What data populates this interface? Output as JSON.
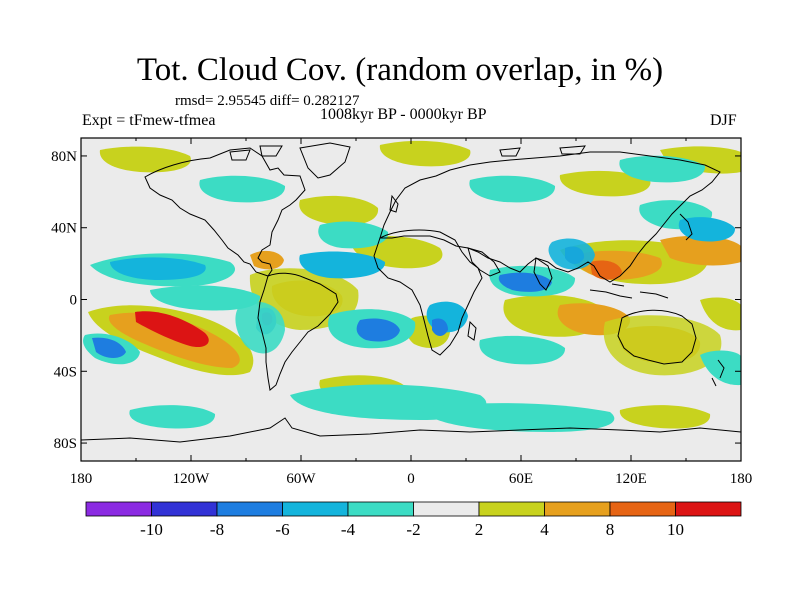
{
  "title": "Tot. Cloud Cov. (random overlap, in %)",
  "subtitle": "rmsd= 2.95545 diff= 0.282127",
  "left_label": "Expt = tFmew-tfmea",
  "center_label": "1008kyr BP - 0000kyr BP",
  "right_label": "DJF",
  "chart_data": {
    "type": "heatmap",
    "title": "Tot. Cloud Cov. (random overlap, in %)",
    "x_ticks": [
      "180",
      "120W",
      "60W",
      "0",
      "60E",
      "120E",
      "180"
    ],
    "y_ticks": [
      "80N",
      "40N",
      "0",
      "40S",
      "80S"
    ],
    "colorbar": {
      "labels": [
        "-10",
        "-8",
        "-6",
        "-4",
        "-2",
        "2",
        "4",
        "8",
        "10"
      ],
      "colors": [
        "#8b2be2",
        "#3232d6",
        "#1e7de0",
        "#14b4dc",
        "#3cdcc4",
        "#ebebeb",
        "#c8d21e",
        "#e6a01e",
        "#e66414",
        "#dc1414"
      ]
    },
    "fill_color": "#ebebeb"
  }
}
